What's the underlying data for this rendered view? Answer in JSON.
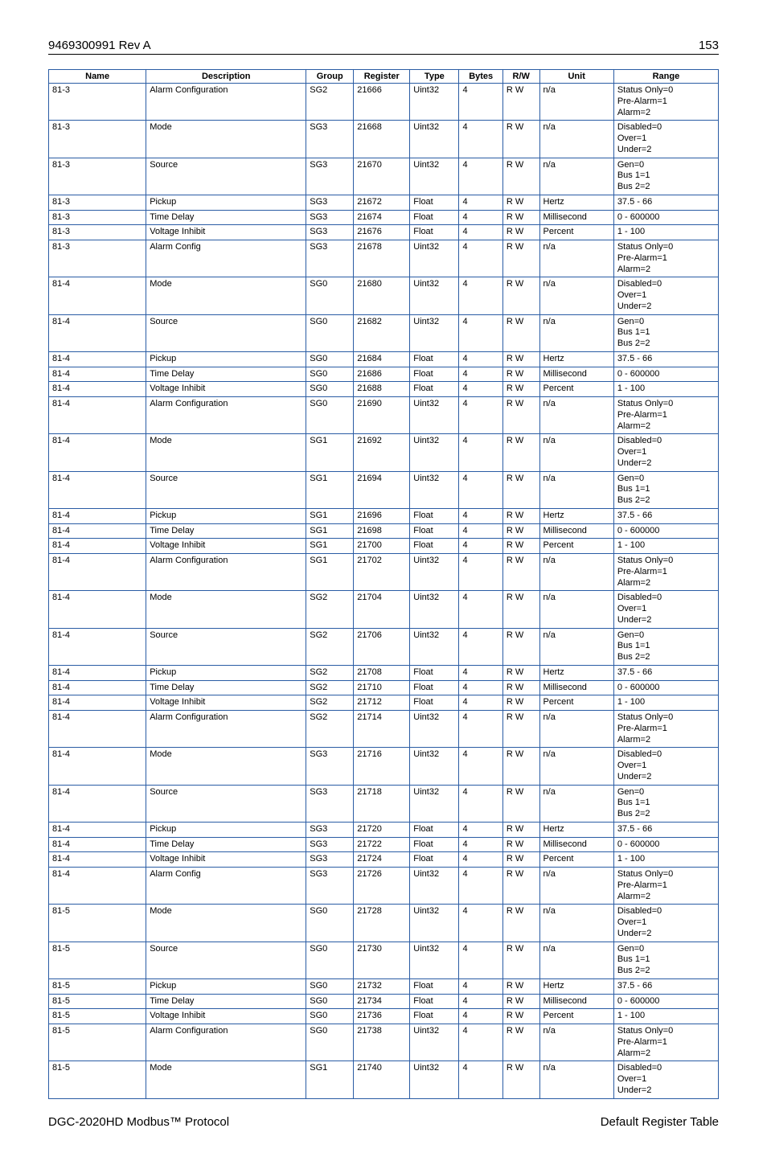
{
  "header": {
    "doc_id": "9469300991 Rev A",
    "page_number": "153"
  },
  "footer": {
    "left": "DGC-2020HD Modbus™ Protocol",
    "right": "Default Register Table"
  },
  "table": {
    "border_color": "#2a5ca4",
    "font_size": 11,
    "columns": [
      "Name",
      "Description",
      "Group",
      "Register",
      "Type",
      "Bytes",
      "R/W",
      "Unit",
      "Range"
    ],
    "rows": [
      [
        "81-3",
        "Alarm Configuration",
        "SG2",
        "21666",
        "Uint32",
        "4",
        "R W",
        "n/a",
        "Status Only=0\nPre-Alarm=1\nAlarm=2"
      ],
      [
        "81-3",
        "Mode",
        "SG3",
        "21668",
        "Uint32",
        "4",
        "R W",
        "n/a",
        "Disabled=0\nOver=1\nUnder=2"
      ],
      [
        "81-3",
        "Source",
        "SG3",
        "21670",
        "Uint32",
        "4",
        "R W",
        "n/a",
        "Gen=0\nBus 1=1\nBus 2=2"
      ],
      [
        "81-3",
        "Pickup",
        "SG3",
        "21672",
        "Float",
        "4",
        "R W",
        "Hertz",
        "37.5 - 66"
      ],
      [
        "81-3",
        "Time Delay",
        "SG3",
        "21674",
        "Float",
        "4",
        "R W",
        "Millisecond",
        "0 - 600000"
      ],
      [
        "81-3",
        "Voltage Inhibit",
        "SG3",
        "21676",
        "Float",
        "4",
        "R W",
        "Percent",
        "1 - 100"
      ],
      [
        "81-3",
        "Alarm Config",
        "SG3",
        "21678",
        "Uint32",
        "4",
        "R W",
        "n/a",
        "Status Only=0\nPre-Alarm=1\nAlarm=2"
      ],
      [
        "81-4",
        "Mode",
        "SG0",
        "21680",
        "Uint32",
        "4",
        "R W",
        "n/a",
        "Disabled=0\nOver=1\nUnder=2"
      ],
      [
        "81-4",
        "Source",
        "SG0",
        "21682",
        "Uint32",
        "4",
        "R W",
        "n/a",
        "Gen=0\nBus 1=1\nBus 2=2"
      ],
      [
        "81-4",
        "Pickup",
        "SG0",
        "21684",
        "Float",
        "4",
        "R W",
        "Hertz",
        "37.5 - 66"
      ],
      [
        "81-4",
        "Time Delay",
        "SG0",
        "21686",
        "Float",
        "4",
        "R W",
        "Millisecond",
        "0 - 600000"
      ],
      [
        "81-4",
        "Voltage Inhibit",
        "SG0",
        "21688",
        "Float",
        "4",
        "R W",
        "Percent",
        "1 - 100"
      ],
      [
        "81-4",
        "Alarm Configuration",
        "SG0",
        "21690",
        "Uint32",
        "4",
        "R W",
        "n/a",
        "Status Only=0\nPre-Alarm=1\nAlarm=2"
      ],
      [
        "81-4",
        "Mode",
        "SG1",
        "21692",
        "Uint32",
        "4",
        "R W",
        "n/a",
        "Disabled=0\nOver=1\nUnder=2"
      ],
      [
        "81-4",
        "Source",
        "SG1",
        "21694",
        "Uint32",
        "4",
        "R W",
        "n/a",
        "Gen=0\nBus 1=1\nBus 2=2"
      ],
      [
        "81-4",
        "Pickup",
        "SG1",
        "21696",
        "Float",
        "4",
        "R W",
        "Hertz",
        "37.5 - 66"
      ],
      [
        "81-4",
        "Time Delay",
        "SG1",
        "21698",
        "Float",
        "4",
        "R W",
        "Millisecond",
        "0 - 600000"
      ],
      [
        "81-4",
        "Voltage Inhibit",
        "SG1",
        "21700",
        "Float",
        "4",
        "R W",
        "Percent",
        "1 - 100"
      ],
      [
        "81-4",
        "Alarm Configuration",
        "SG1",
        "21702",
        "Uint32",
        "4",
        "R W",
        "n/a",
        "Status Only=0\nPre-Alarm=1\nAlarm=2"
      ],
      [
        "81-4",
        "Mode",
        "SG2",
        "21704",
        "Uint32",
        "4",
        "R W",
        "n/a",
        "Disabled=0\nOver=1\nUnder=2"
      ],
      [
        "81-4",
        "Source",
        "SG2",
        "21706",
        "Uint32",
        "4",
        "R W",
        "n/a",
        "Gen=0\nBus 1=1\nBus 2=2"
      ],
      [
        "81-4",
        "Pickup",
        "SG2",
        "21708",
        "Float",
        "4",
        "R W",
        "Hertz",
        "37.5 - 66"
      ],
      [
        "81-4",
        "Time Delay",
        "SG2",
        "21710",
        "Float",
        "4",
        "R W",
        "Millisecond",
        "0 - 600000"
      ],
      [
        "81-4",
        "Voltage Inhibit",
        "SG2",
        "21712",
        "Float",
        "4",
        "R W",
        "Percent",
        "1 - 100"
      ],
      [
        "81-4",
        "Alarm Configuration",
        "SG2",
        "21714",
        "Uint32",
        "4",
        "R W",
        "n/a",
        "Status Only=0\nPre-Alarm=1\nAlarm=2"
      ],
      [
        "81-4",
        "Mode",
        "SG3",
        "21716",
        "Uint32",
        "4",
        "R W",
        "n/a",
        "Disabled=0\nOver=1\nUnder=2"
      ],
      [
        "81-4",
        "Source",
        "SG3",
        "21718",
        "Uint32",
        "4",
        "R W",
        "n/a",
        "Gen=0\nBus 1=1\nBus 2=2"
      ],
      [
        "81-4",
        "Pickup",
        "SG3",
        "21720",
        "Float",
        "4",
        "R W",
        "Hertz",
        "37.5 - 66"
      ],
      [
        "81-4",
        "Time Delay",
        "SG3",
        "21722",
        "Float",
        "4",
        "R W",
        "Millisecond",
        "0 - 600000"
      ],
      [
        "81-4",
        "Voltage Inhibit",
        "SG3",
        "21724",
        "Float",
        "4",
        "R W",
        "Percent",
        "1 - 100"
      ],
      [
        "81-4",
        "Alarm Config",
        "SG3",
        "21726",
        "Uint32",
        "4",
        "R W",
        "n/a",
        "Status Only=0\nPre-Alarm=1\nAlarm=2"
      ],
      [
        "81-5",
        "Mode",
        "SG0",
        "21728",
        "Uint32",
        "4",
        "R W",
        "n/a",
        "Disabled=0\nOver=1\nUnder=2"
      ],
      [
        "81-5",
        "Source",
        "SG0",
        "21730",
        "Uint32",
        "4",
        "R W",
        "n/a",
        "Gen=0\nBus 1=1\nBus 2=2"
      ],
      [
        "81-5",
        "Pickup",
        "SG0",
        "21732",
        "Float",
        "4",
        "R W",
        "Hertz",
        "37.5 - 66"
      ],
      [
        "81-5",
        "Time Delay",
        "SG0",
        "21734",
        "Float",
        "4",
        "R W",
        "Millisecond",
        "0 - 600000"
      ],
      [
        "81-5",
        "Voltage Inhibit",
        "SG0",
        "21736",
        "Float",
        "4",
        "R W",
        "Percent",
        "1 - 100"
      ],
      [
        "81-5",
        "Alarm Configuration",
        "SG0",
        "21738",
        "Uint32",
        "4",
        "R W",
        "n/a",
        "Status Only=0\nPre-Alarm=1\nAlarm=2"
      ],
      [
        "81-5",
        "Mode",
        "SG1",
        "21740",
        "Uint32",
        "4",
        "R W",
        "n/a",
        "Disabled=0\nOver=1\nUnder=2"
      ]
    ]
  }
}
